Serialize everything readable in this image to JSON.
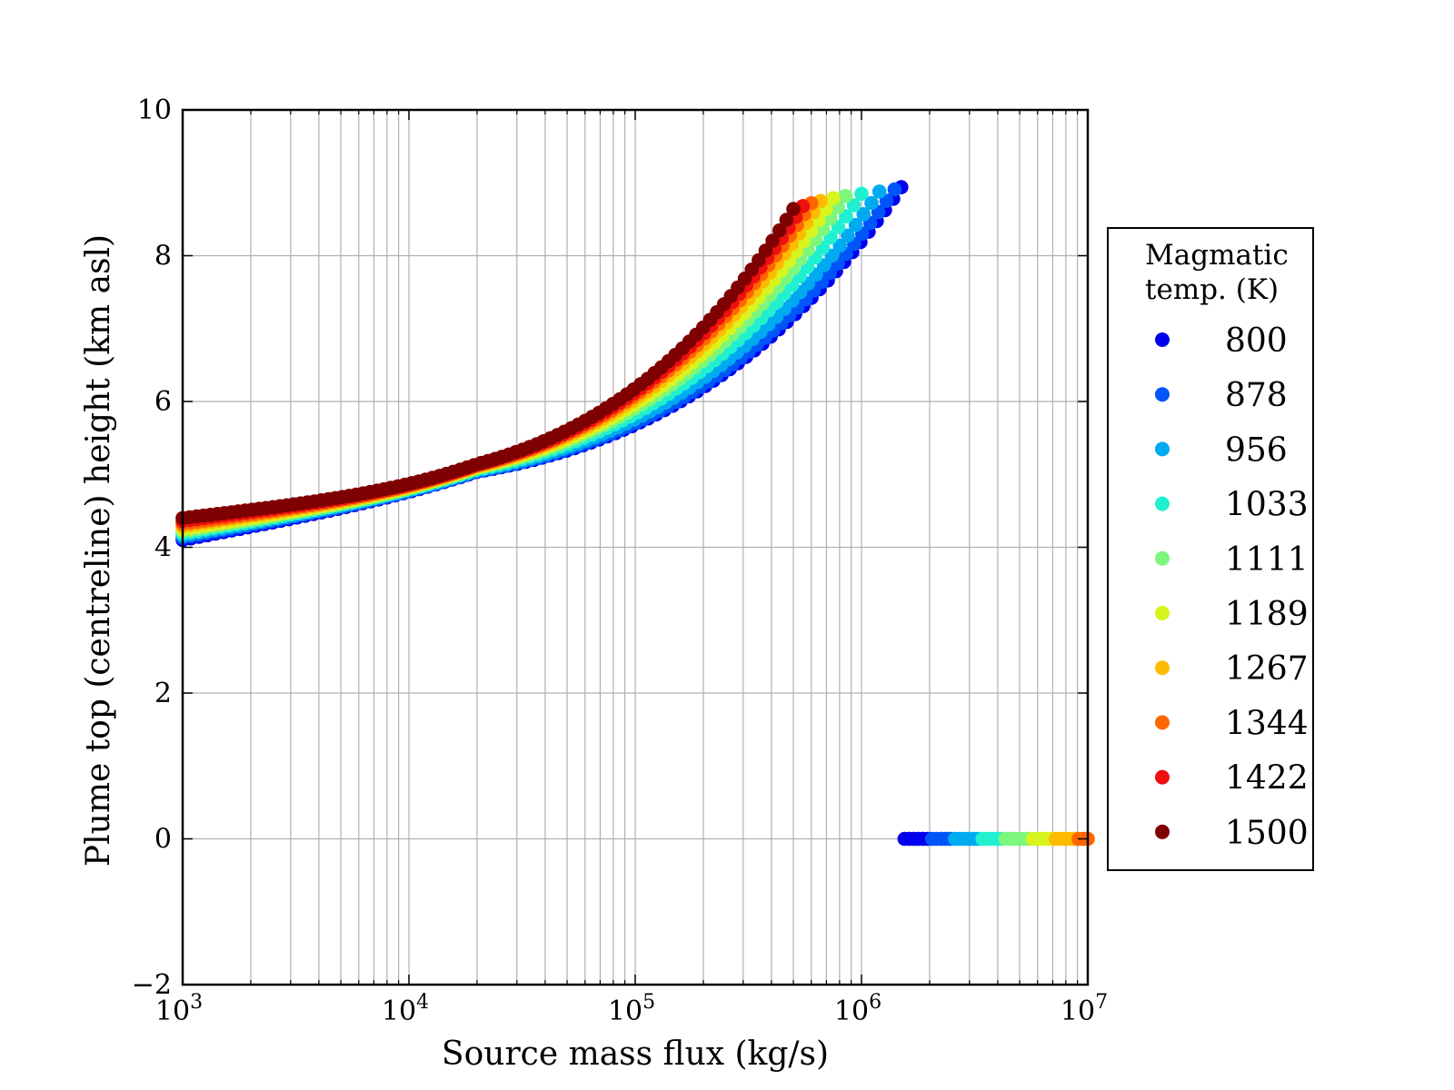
{
  "chart_data": {
    "type": "scatter",
    "xlabel": "Source mass flux (kg/s)",
    "ylabel": "Plume top (centreline) height (km asl)",
    "xscale": "log",
    "xlim": [
      1000,
      10000000
    ],
    "ylim": [
      -2,
      10
    ],
    "x_ticks": [
      1000,
      10000,
      100000,
      1000000,
      10000000
    ],
    "x_tick_bases": [
      "10",
      "10",
      "10",
      "10",
      "10"
    ],
    "x_tick_exps": [
      "3",
      "4",
      "5",
      "6",
      "7"
    ],
    "y_ticks": [
      -2,
      0,
      2,
      4,
      6,
      8,
      10
    ],
    "y_tick_labels": [
      "−2",
      "0",
      "2",
      "4",
      "6",
      "8",
      "10"
    ],
    "grid": true,
    "legend_placement": "outside-right",
    "legend_title": [
      "Magmatic",
      "temp. (K)"
    ],
    "series": [
      {
        "name": "800",
        "color": "#0000ef",
        "x_max": 1500000,
        "y_start": 4.1
      },
      {
        "name": "878",
        "color": "#0055f8",
        "x_max": 1400000,
        "y_start": 4.13
      },
      {
        "name": "956",
        "color": "#00aaf0",
        "x_max": 1200000,
        "y_start": 4.16
      },
      {
        "name": "1033",
        "color": "#20f0d0",
        "x_max": 1000000,
        "y_start": 4.19
      },
      {
        "name": "1111",
        "color": "#7cf77c",
        "x_max": 850000,
        "y_start": 4.22
      },
      {
        "name": "1189",
        "color": "#d8f41e",
        "x_max": 750000,
        "y_start": 4.25
      },
      {
        "name": "1267",
        "color": "#ffbb00",
        "x_max": 660000,
        "y_start": 4.29
      },
      {
        "name": "1344",
        "color": "#ff6600",
        "x_max": 600000,
        "y_start": 4.32
      },
      {
        "name": "1422",
        "color": "#ef0f0f",
        "x_max": 550000,
        "y_start": 4.36
      },
      {
        "name": "1500",
        "color": "#7f0000",
        "x_max": 500000,
        "y_start": 4.4
      }
    ],
    "zero_band": {
      "y": 0,
      "x_min": 1550000,
      "x_max": 10000000
    }
  }
}
